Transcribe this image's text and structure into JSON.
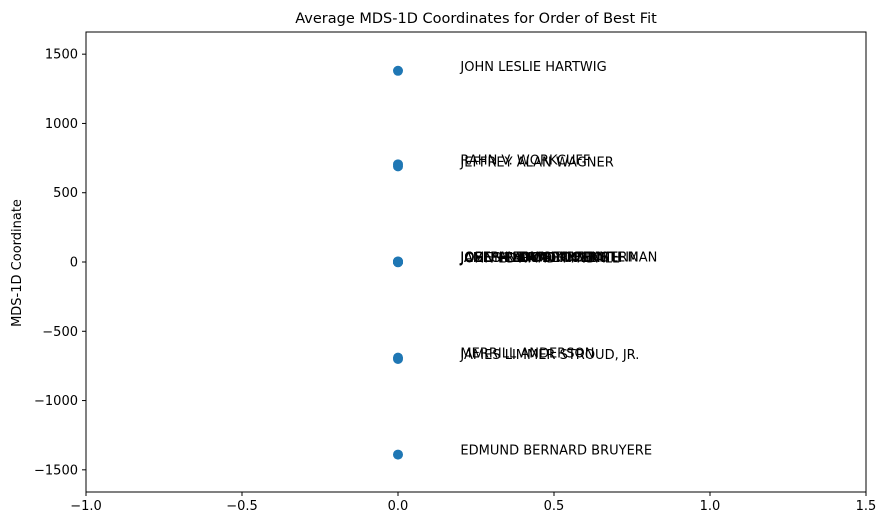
{
  "chart_data": {
    "type": "scatter",
    "title": "Average MDS-1D Coordinates for Order of Best Fit",
    "xlabel": "",
    "ylabel": "MDS-1D Coordinate",
    "xlim": [
      -1.0,
      1.5
    ],
    "ylim": [
      -1660,
      1660
    ],
    "xticks": [
      -1.0,
      -0.5,
      0.0,
      0.5,
      1.0,
      1.5
    ],
    "xtick_labels": [
      "−1.0",
      "−0.5",
      "0.0",
      "0.5",
      "1.0",
      "1.5"
    ],
    "yticks": [
      -1500,
      -1000,
      -500,
      0,
      500,
      1000,
      1500
    ],
    "ytick_labels": [
      "−1500",
      "−1000",
      "−500",
      "0",
      "500",
      "1000",
      "1500"
    ],
    "grid": false,
    "legend": "none",
    "marker_color": "#1f77b4",
    "label_offset_x": 0.2,
    "points": [
      {
        "x": 0,
        "y": 1380,
        "label": "JOHN LESLIE HARTWIG"
      },
      {
        "x": 0,
        "y": 705,
        "label": "RAHN V. WORKCUFF"
      },
      {
        "x": 0,
        "y": 690,
        "label": "JEFFREY ALAN WAGNER"
      },
      {
        "x": 0,
        "y": 4,
        "label": "JOSEPH EDWARD ZIMMERMAN"
      },
      {
        "x": 0,
        "y": 3,
        "label": "JOSEPH LOUIS RUBENSTEIN"
      },
      {
        "x": 0,
        "y": 2,
        "label": "JOHN ANTHONY PELKY"
      },
      {
        "x": 0,
        "y": 1,
        "label": "JAMES RANDOLPH SMITH"
      },
      {
        "x": 0,
        "y": 0,
        "label": "JOEL HENRY BERKMAN"
      },
      {
        "x": 0,
        "y": -1,
        "label": "JAMES ELLIOTT COLE"
      },
      {
        "x": 0,
        "y": -2,
        "label": "JOHN EDWARD TYNDALL"
      },
      {
        "x": 0,
        "y": -690,
        "label": "MERRILL ANDERSON"
      },
      {
        "x": 0,
        "y": -700,
        "label": "JAMES LIMMER STROUD, JR."
      },
      {
        "x": 0,
        "y": -1390,
        "label": "EDMUND BERNARD BRUYERE"
      }
    ]
  }
}
